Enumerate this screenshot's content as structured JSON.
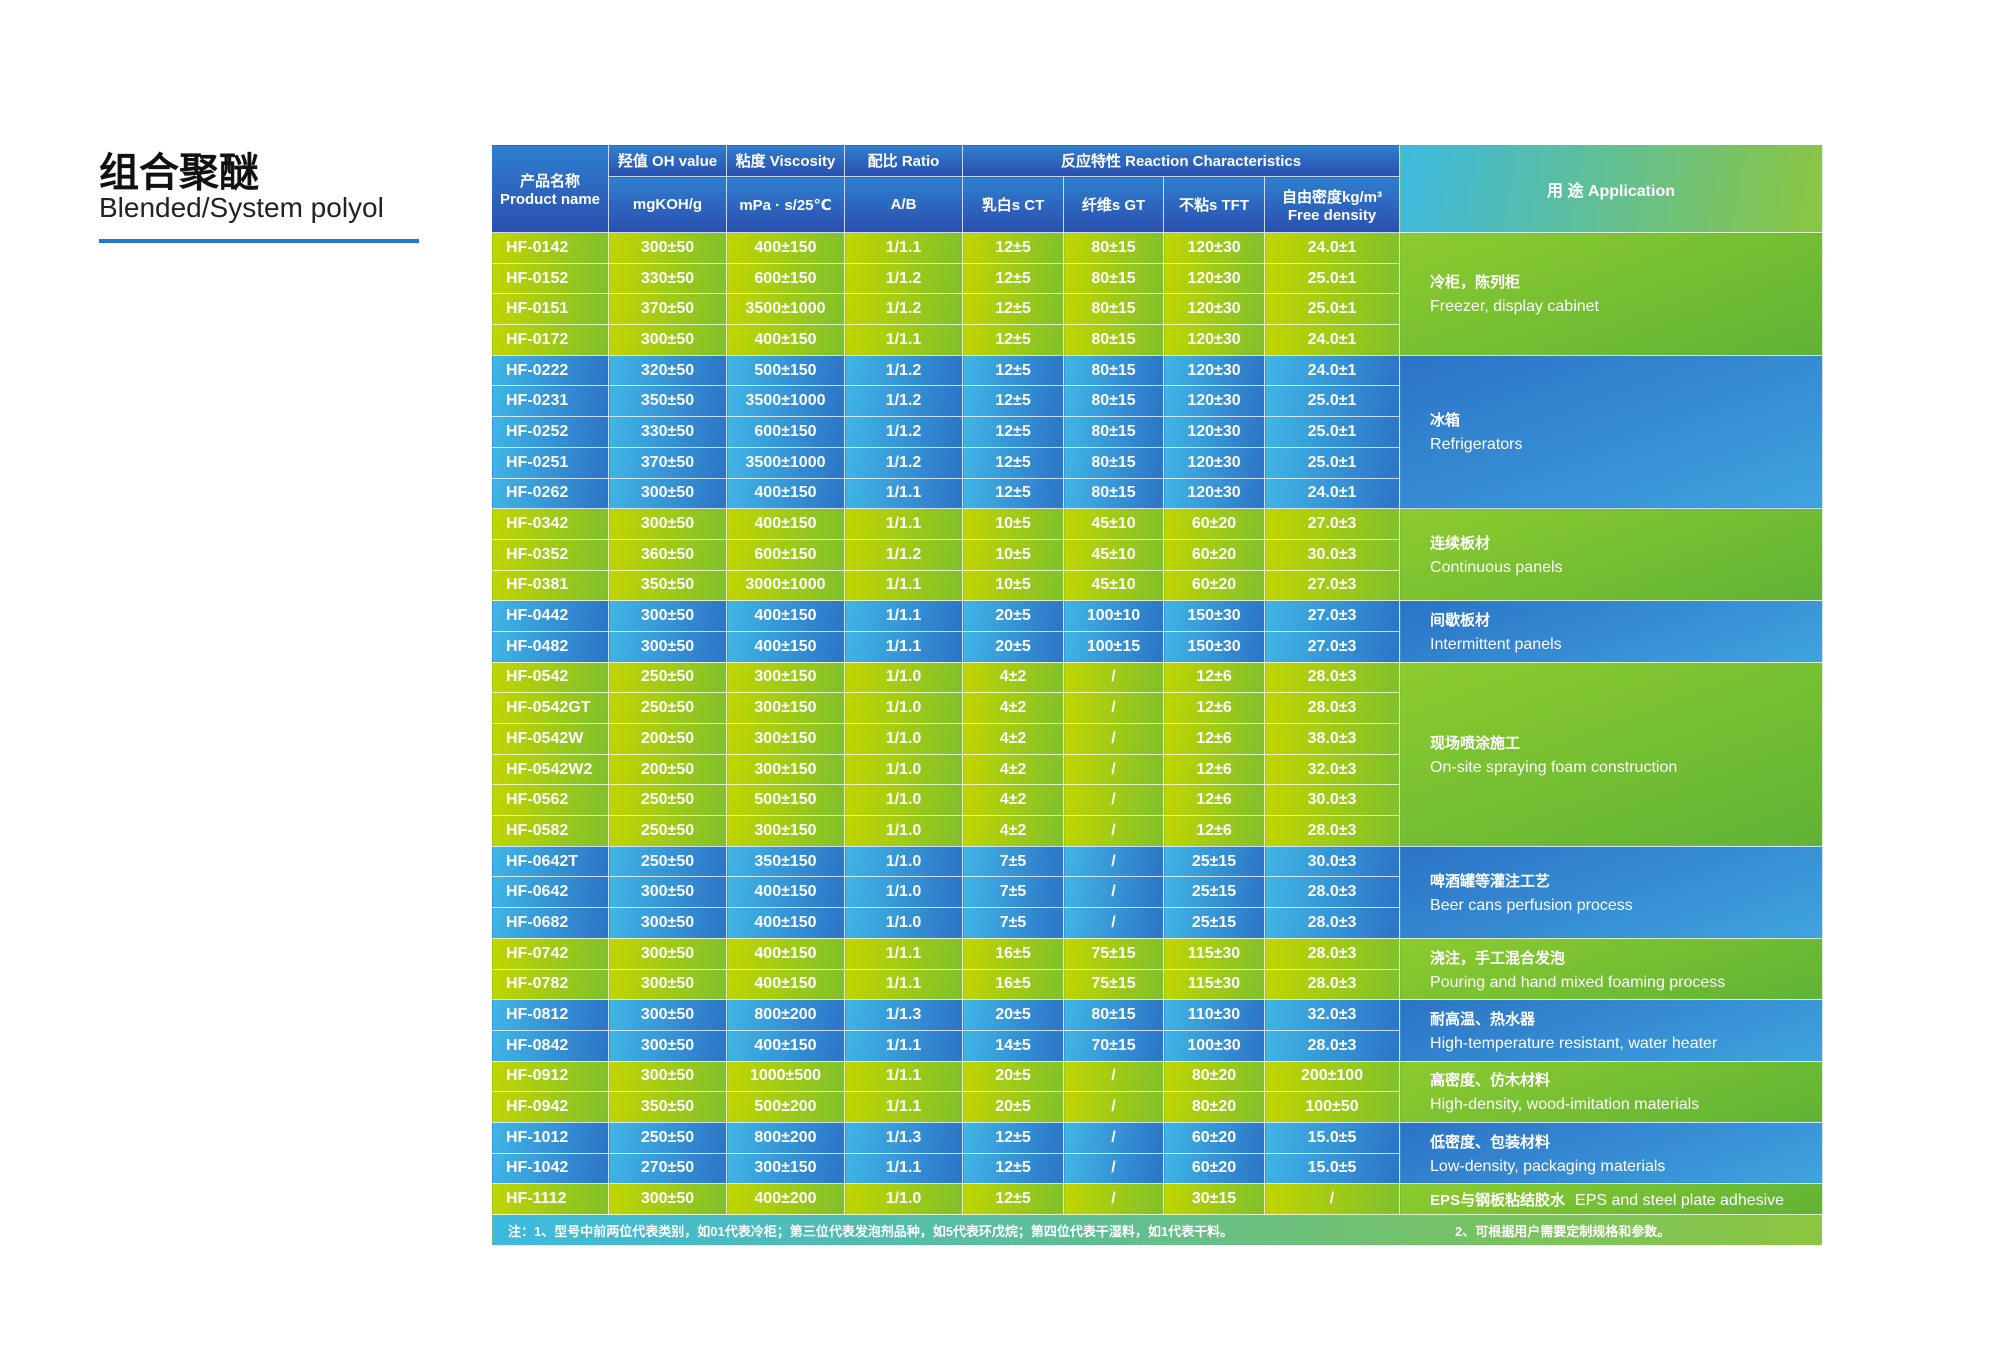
{
  "page": {
    "title": "组合聚醚",
    "subtitle": "Blended/System polyol",
    "accent_color": "#1c7cc9"
  },
  "colors": {
    "green": "#9ccb1c",
    "blue": "#3a8fd6"
  },
  "header": {
    "product_name_zh": "产品名称",
    "product_name_en": "Product name",
    "oh_value": "羟值 OH value",
    "oh_unit": "mgKOH/g",
    "viscosity": "粘度 Viscosity",
    "viscosity_unit": "mPa · s/25℃",
    "ratio": "配比 Ratio",
    "ratio_unit": "A/B",
    "reaction": "反应特性 Reaction Characteristics",
    "ct": "乳白s CT",
    "gt": "纤维s GT",
    "tft": "不粘s TFT",
    "density_zh": "自由密度kg/m³",
    "density_en": "Free density",
    "application": "用 途 Application"
  },
  "groups": [
    {
      "color": "green",
      "zh": "冷柜，陈列柜",
      "en": "Freezer, display cabinet",
      "rows": [
        [
          "HF-0142",
          "300±50",
          "400±150",
          "1/1.1",
          "12±5",
          "80±15",
          "120±30",
          "24.0±1"
        ],
        [
          "HF-0152",
          "330±50",
          "600±150",
          "1/1.2",
          "12±5",
          "80±15",
          "120±30",
          "25.0±1"
        ],
        [
          "HF-0151",
          "370±50",
          "3500±1000",
          "1/1.2",
          "12±5",
          "80±15",
          "120±30",
          "25.0±1"
        ],
        [
          "HF-0172",
          "300±50",
          "400±150",
          "1/1.1",
          "12±5",
          "80±15",
          "120±30",
          "24.0±1"
        ]
      ]
    },
    {
      "color": "blue",
      "zh": "冰箱",
      "en": "Refrigerators",
      "rows": [
        [
          "HF-0222",
          "320±50",
          "500±150",
          "1/1.2",
          "12±5",
          "80±15",
          "120±30",
          "24.0±1"
        ],
        [
          "HF-0231",
          "350±50",
          "3500±1000",
          "1/1.2",
          "12±5",
          "80±15",
          "120±30",
          "25.0±1"
        ],
        [
          "HF-0252",
          "330±50",
          "600±150",
          "1/1.2",
          "12±5",
          "80±15",
          "120±30",
          "25.0±1"
        ],
        [
          "HF-0251",
          "370±50",
          "3500±1000",
          "1/1.2",
          "12±5",
          "80±15",
          "120±30",
          "25.0±1"
        ],
        [
          "HF-0262",
          "300±50",
          "400±150",
          "1/1.1",
          "12±5",
          "80±15",
          "120±30",
          "24.0±1"
        ]
      ]
    },
    {
      "color": "green",
      "zh": "连续板材",
      "en": "Continuous panels",
      "rows": [
        [
          "HF-0342",
          "300±50",
          "400±150",
          "1/1.1",
          "10±5",
          "45±10",
          "60±20",
          "27.0±3"
        ],
        [
          "HF-0352",
          "360±50",
          "600±150",
          "1/1.2",
          "10±5",
          "45±10",
          "60±20",
          "30.0±3"
        ],
        [
          "HF-0381",
          "350±50",
          "3000±1000",
          "1/1.1",
          "10±5",
          "45±10",
          "60±20",
          "27.0±3"
        ]
      ]
    },
    {
      "color": "blue",
      "zh": "间歇板材",
      "en": "Intermittent panels",
      "rows": [
        [
          "HF-0442",
          "300±50",
          "400±150",
          "1/1.1",
          "20±5",
          "100±10",
          "150±30",
          "27.0±3"
        ],
        [
          "HF-0482",
          "300±50",
          "400±150",
          "1/1.1",
          "20±5",
          "100±15",
          "150±30",
          "27.0±3"
        ]
      ]
    },
    {
      "color": "green",
      "zh": "现场喷涂施工",
      "en": "On-site spraying foam construction",
      "rows": [
        [
          "HF-0542",
          "250±50",
          "300±150",
          "1/1.0",
          "4±2",
          "/",
          "12±6",
          "28.0±3"
        ],
        [
          "HF-0542GT",
          "250±50",
          "300±150",
          "1/1.0",
          "4±2",
          "/",
          "12±6",
          "28.0±3"
        ],
        [
          "HF-0542W",
          "200±50",
          "300±150",
          "1/1.0",
          "4±2",
          "/",
          "12±6",
          "38.0±3"
        ],
        [
          "HF-0542W2",
          "200±50",
          "300±150",
          "1/1.0",
          "4±2",
          "/",
          "12±6",
          "32.0±3"
        ],
        [
          "HF-0562",
          "250±50",
          "500±150",
          "1/1.0",
          "4±2",
          "/",
          "12±6",
          "30.0±3"
        ],
        [
          "HF-0582",
          "250±50",
          "300±150",
          "1/1.0",
          "4±2",
          "/",
          "12±6",
          "28.0±3"
        ]
      ]
    },
    {
      "color": "blue",
      "zh": "啤酒罐等灌注工艺",
      "en": "Beer cans perfusion process",
      "rows": [
        [
          "HF-0642T",
          "250±50",
          "350±150",
          "1/1.0",
          "7±5",
          "/",
          "25±15",
          "30.0±3"
        ],
        [
          "HF-0642",
          "300±50",
          "400±150",
          "1/1.0",
          "7±5",
          "/",
          "25±15",
          "28.0±3"
        ],
        [
          "HF-0682",
          "300±50",
          "400±150",
          "1/1.0",
          "7±5",
          "/",
          "25±15",
          "28.0±3"
        ]
      ]
    },
    {
      "color": "green",
      "zh": "浇注，手工混合发泡",
      "en": "Pouring and hand mixed foaming process",
      "rows": [
        [
          "HF-0742",
          "300±50",
          "400±150",
          "1/1.1",
          "16±5",
          "75±15",
          "115±30",
          "28.0±3"
        ],
        [
          "HF-0782",
          "300±50",
          "400±150",
          "1/1.1",
          "16±5",
          "75±15",
          "115±30",
          "28.0±3"
        ]
      ]
    },
    {
      "color": "blue",
      "zh": "耐高温、热水器",
      "en": "High-temperature resistant, water heater",
      "rows": [
        [
          "HF-0812",
          "300±50",
          "800±200",
          "1/1.3",
          "20±5",
          "80±15",
          "110±30",
          "32.0±3"
        ],
        [
          "HF-0842",
          "300±50",
          "400±150",
          "1/1.1",
          "14±5",
          "70±15",
          "100±30",
          "28.0±3"
        ]
      ]
    },
    {
      "color": "green",
      "zh": "高密度、仿木材料",
      "en": "High-density, wood-imitation materials",
      "rows": [
        [
          "HF-0912",
          "300±50",
          "1000±500",
          "1/1.1",
          "20±5",
          "/",
          "80±20",
          "200±100"
        ],
        [
          "HF-0942",
          "350±50",
          "500±200",
          "1/1.1",
          "20±5",
          "/",
          "80±20",
          "100±50"
        ]
      ]
    },
    {
      "color": "blue",
      "zh": "低密度、包装材料",
      "en": "Low-density, packaging materials",
      "rows": [
        [
          "HF-1012",
          "250±50",
          "800±200",
          "1/1.3",
          "12±5",
          "/",
          "60±20",
          "15.0±5"
        ],
        [
          "HF-1042",
          "270±50",
          "300±150",
          "1/1.1",
          "12±5",
          "/",
          "60±20",
          "15.0±5"
        ]
      ]
    },
    {
      "color": "green",
      "zh": "EPS与钢板粘结胶水",
      "en": "EPS and steel plate adhesive",
      "inline": true,
      "rows": [
        [
          "HF-1112",
          "300±50",
          "400±200",
          "1/1.0",
          "12±5",
          "/",
          "30±15",
          "/"
        ]
      ]
    }
  ],
  "notes": {
    "note1": "注：1、型号中前两位代表类别，如01代表冷柜；第三位代表发泡剂品种，如5代表环戊烷；第四位代表干湿料，如1代表干料。",
    "note2": "2、可根据用户需要定制规格和参数。"
  }
}
